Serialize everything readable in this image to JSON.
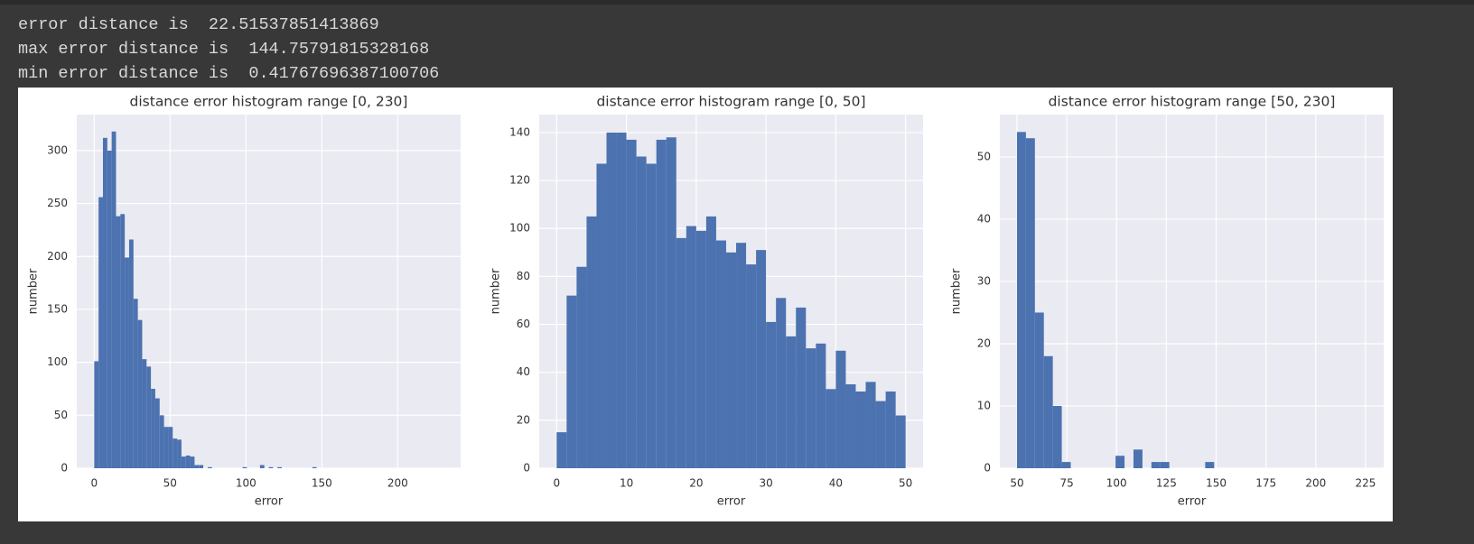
{
  "output_lines": [
    "error distance is  22.51537851413869",
    "max error distance is  144.75791815328168",
    "min error distance is  0.41767696387100706"
  ],
  "chart_data": [
    {
      "type": "histogram",
      "title": "distance error histogram range [0, 230]",
      "x_label": "error",
      "y_label": "number",
      "color": "#4c72b0",
      "grid": true,
      "bins": [
        0,
        2.875,
        5.75,
        8.625,
        11.5,
        14.375,
        17.25,
        20.125,
        23,
        25.875,
        28.75,
        31.625,
        34.5,
        37.375,
        40.25,
        43.125,
        46,
        48.875,
        51.75,
        54.625,
        57.5,
        60.375,
        63.25,
        66.125,
        69,
        71.875,
        74.75,
        77.625,
        80.5,
        83.375,
        86.25,
        89.125,
        92,
        94.875,
        97.75,
        100.625,
        103.5,
        106.375,
        109.25,
        112.125,
        115,
        117.875,
        120.75,
        123.625,
        126.5,
        129.375,
        132.25,
        135.125,
        138,
        140.875,
        143.75,
        146.625,
        149.5,
        152.375,
        155.25,
        158.125,
        161,
        163.875,
        166.75,
        169.625,
        172.5,
        175.375,
        178.25,
        181.125,
        184,
        186.875,
        189.75,
        192.625,
        195.5,
        198.375,
        201.25,
        204.125,
        207,
        209.875,
        212.75,
        215.625,
        218.5,
        221.375,
        224.25,
        227.125,
        230
      ],
      "values": [
        101,
        256,
        312,
        300,
        318,
        238,
        240,
        199,
        216,
        160,
        140,
        103,
        96,
        75,
        66,
        50,
        39,
        39,
        28,
        27,
        11,
        12,
        11,
        3,
        3,
        0,
        1,
        0,
        0,
        0,
        0,
        0,
        0,
        0,
        1,
        0,
        0,
        0,
        3,
        0,
        1,
        0,
        1,
        0,
        0,
        0,
        0,
        0,
        0,
        0,
        1,
        0,
        0,
        0,
        0,
        0,
        0,
        0,
        0,
        0,
        0,
        0,
        0,
        0,
        0,
        0,
        0,
        0,
        0,
        0,
        0,
        0,
        0,
        0,
        0,
        0,
        0,
        0,
        0,
        0
      ],
      "xlim": [
        -11.5,
        241.5
      ],
      "ylim": [
        0,
        334
      ],
      "xticks": [
        0,
        50,
        100,
        150,
        200
      ],
      "yticks": [
        0,
        50,
        100,
        150,
        200,
        250,
        300
      ]
    },
    {
      "type": "histogram",
      "title": "distance error histogram range [0, 50]",
      "x_label": "error",
      "y_label": "number",
      "color": "#4c72b0",
      "grid": true,
      "bins": [
        0,
        1.4286,
        2.8571,
        4.2857,
        5.7143,
        7.1429,
        8.5714,
        10,
        11.4286,
        12.8571,
        14.2857,
        15.7143,
        17.1429,
        18.5714,
        20,
        21.4286,
        22.8571,
        24.2857,
        25.7143,
        27.1429,
        28.5714,
        30,
        31.4286,
        32.8571,
        34.2857,
        35.7143,
        37.1429,
        38.5714,
        40,
        41.4286,
        42.8571,
        44.2857,
        45.7143,
        47.1429,
        48.5714,
        50
      ],
      "values": [
        15,
        72,
        84,
        105,
        127,
        140,
        140,
        137,
        130,
        127,
        137,
        138,
        96,
        101,
        99,
        105,
        95,
        90,
        94,
        85,
        91,
        61,
        71,
        55,
        67,
        50,
        52,
        33,
        49,
        35,
        32,
        36,
        28,
        32,
        22
      ],
      "xlim": [
        -2.5,
        52.5
      ],
      "ylim": [
        0,
        147.5
      ],
      "xticks": [
        0,
        10,
        20,
        30,
        40,
        50
      ],
      "yticks": [
        0,
        20,
        40,
        60,
        80,
        100,
        120,
        140
      ]
    },
    {
      "type": "histogram",
      "title": "distance error histogram range [50, 230]",
      "x_label": "error",
      "y_label": "number",
      "color": "#4c72b0",
      "grid": true,
      "bins": [
        50,
        54.5,
        59,
        63.5,
        68,
        72.5,
        77,
        81.5,
        86,
        90.5,
        95,
        99.5,
        104,
        108.5,
        113,
        117.5,
        122,
        126.5,
        131,
        135.5,
        140,
        144.5,
        149,
        153.5,
        158,
        162.5,
        167,
        171.5,
        176,
        180.5,
        185,
        189.5,
        194,
        198.5,
        203,
        207.5,
        212,
        216.5,
        221,
        225.5,
        230
      ],
      "values": [
        54,
        53,
        25,
        18,
        10,
        1,
        0,
        0,
        0,
        0,
        0,
        2,
        0,
        3,
        0,
        1,
        1,
        0,
        0,
        0,
        0,
        1,
        0,
        0,
        0,
        0,
        0,
        0,
        0,
        0,
        0,
        0,
        0,
        0,
        0,
        0,
        0,
        0,
        0,
        0
      ],
      "xlim": [
        41.4,
        234.1
      ],
      "ylim": [
        0,
        56.8
      ],
      "xticks": [
        50,
        75,
        100,
        125,
        150,
        175,
        200,
        225
      ],
      "yticks": [
        0,
        10,
        20,
        30,
        40,
        50
      ]
    }
  ]
}
